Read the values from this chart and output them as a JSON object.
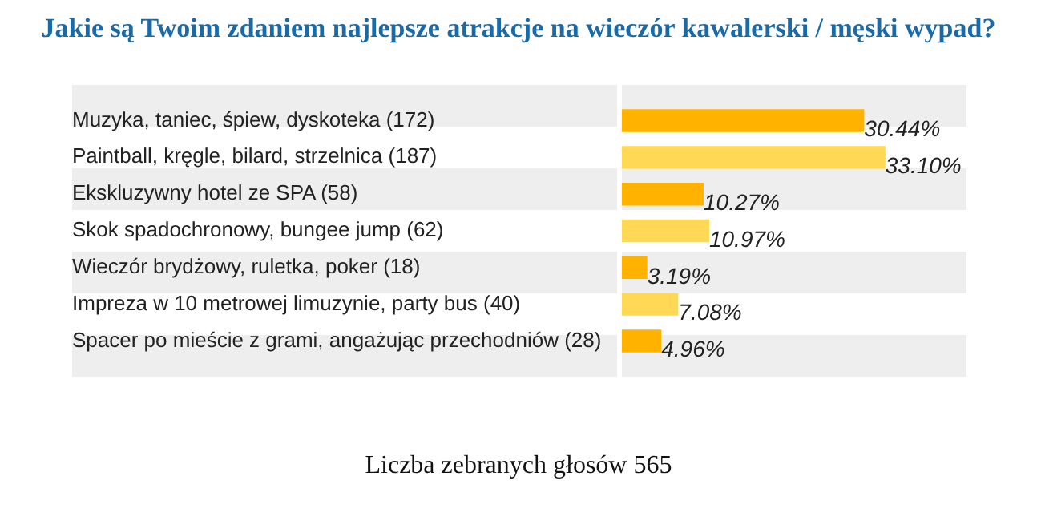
{
  "chart_data": {
    "type": "bar",
    "orientation": "horizontal",
    "title": "Jakie są Twoim zdaniem najlepsze atrakcje na wieczór kawalerski / męski wypad?",
    "categories": [
      "Muzyka, taniec, śpiew, dyskoteka (172)",
      "Paintball, kręgle, bilard, strzelnica (187)",
      "Ekskluzywny hotel ze SPA (58)",
      "Skok spadochronowy, bungee jump (62)",
      "Wieczór brydżowy, ruletka, poker (18)",
      "Impreza w 10 metrowej limuzynie, party bus (40)",
      "Spacer po mieście z grami, angażując przechodniów (28)"
    ],
    "values": [
      30.44,
      33.1,
      10.27,
      10.97,
      3.19,
      7.08,
      4.96
    ],
    "value_labels": [
      "30.44%",
      "33.10%",
      "10.27%",
      "10.97%",
      "3.19%",
      "7.08%",
      "4.96%"
    ],
    "colors": [
      "#ffb300",
      "#ffd955",
      "#ffb300",
      "#ffd955",
      "#ffb300",
      "#ffd955",
      "#ffb300"
    ],
    "annotations": [
      "Liczba zebranych głosów 565"
    ]
  }
}
